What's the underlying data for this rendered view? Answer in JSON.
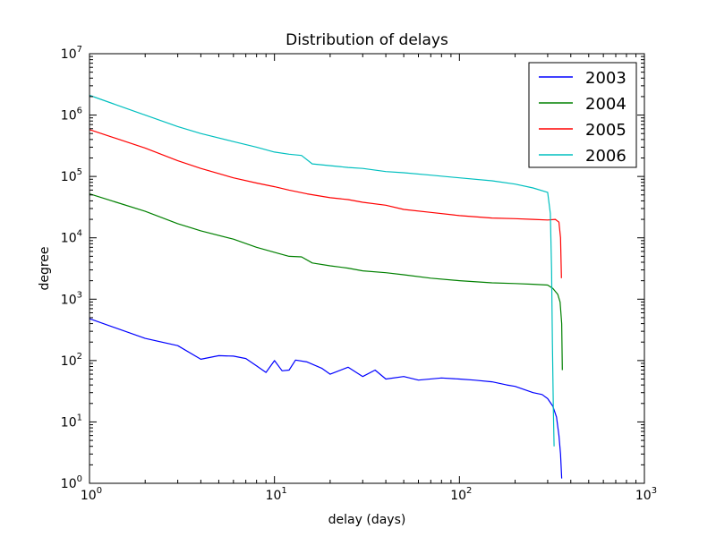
{
  "chart_data": {
    "type": "line",
    "title": "Distribution of delays",
    "xlabel": "delay (days)",
    "ylabel": "degree",
    "x_scale": "log",
    "y_scale": "log",
    "xlim": [
      1,
      1000
    ],
    "ylim": [
      1,
      10000000
    ],
    "grid": false,
    "legend_position": "top-right",
    "x_ticks": [
      {
        "value": 1,
        "base": "10",
        "exp": "0"
      },
      {
        "value": 10,
        "base": "10",
        "exp": "1"
      },
      {
        "value": 100,
        "base": "10",
        "exp": "2"
      },
      {
        "value": 1000,
        "base": "10",
        "exp": "3"
      }
    ],
    "y_ticks": [
      {
        "value": 1,
        "base": "10",
        "exp": "0"
      },
      {
        "value": 10,
        "base": "10",
        "exp": "1"
      },
      {
        "value": 100,
        "base": "10",
        "exp": "2"
      },
      {
        "value": 1000,
        "base": "10",
        "exp": "3"
      },
      {
        "value": 10000,
        "base": "10",
        "exp": "4"
      },
      {
        "value": 100000,
        "base": "10",
        "exp": "5"
      },
      {
        "value": 1000000,
        "base": "10",
        "exp": "6"
      },
      {
        "value": 10000000,
        "base": "10",
        "exp": "7"
      }
    ],
    "series": [
      {
        "name": "2003",
        "color": "#0000ff",
        "points": [
          [
            1,
            480
          ],
          [
            2,
            230
          ],
          [
            3,
            175
          ],
          [
            4,
            105
          ],
          [
            5,
            120
          ],
          [
            6,
            118
          ],
          [
            7,
            108
          ],
          [
            8,
            82
          ],
          [
            9,
            64
          ],
          [
            10,
            100
          ],
          [
            11,
            68
          ],
          [
            12,
            70
          ],
          [
            13,
            102
          ],
          [
            15,
            95
          ],
          [
            18,
            75
          ],
          [
            20,
            60
          ],
          [
            25,
            78
          ],
          [
            30,
            55
          ],
          [
            35,
            70
          ],
          [
            40,
            50
          ],
          [
            50,
            55
          ],
          [
            60,
            48
          ],
          [
            80,
            52
          ],
          [
            100,
            50
          ],
          [
            120,
            48
          ],
          [
            150,
            45
          ],
          [
            180,
            40
          ],
          [
            200,
            38
          ],
          [
            250,
            30
          ],
          [
            280,
            28
          ],
          [
            300,
            24
          ],
          [
            320,
            18
          ],
          [
            335,
            12
          ],
          [
            345,
            6
          ],
          [
            352,
            3
          ],
          [
            357,
            1.2
          ]
        ]
      },
      {
        "name": "2004",
        "color": "#008000",
        "points": [
          [
            1,
            52000
          ],
          [
            2,
            27000
          ],
          [
            3,
            17000
          ],
          [
            4,
            13000
          ],
          [
            6,
            9500
          ],
          [
            8,
            7000
          ],
          [
            10,
            5800
          ],
          [
            12,
            5000
          ],
          [
            14,
            4900
          ],
          [
            16,
            3900
          ],
          [
            20,
            3500
          ],
          [
            25,
            3200
          ],
          [
            30,
            2900
          ],
          [
            40,
            2700
          ],
          [
            50,
            2500
          ],
          [
            70,
            2200
          ],
          [
            100,
            2000
          ],
          [
            150,
            1850
          ],
          [
            200,
            1800
          ],
          [
            250,
            1750
          ],
          [
            300,
            1700
          ],
          [
            320,
            1500
          ],
          [
            340,
            1200
          ],
          [
            350,
            900
          ],
          [
            357,
            400
          ],
          [
            360,
            70
          ]
        ]
      },
      {
        "name": "2005",
        "color": "#ff0000",
        "points": [
          [
            1,
            580000
          ],
          [
            2,
            290000
          ],
          [
            3,
            180000
          ],
          [
            4,
            135000
          ],
          [
            6,
            95000
          ],
          [
            8,
            78000
          ],
          [
            10,
            68000
          ],
          [
            12,
            60000
          ],
          [
            15,
            52000
          ],
          [
            20,
            45000
          ],
          [
            25,
            42000
          ],
          [
            30,
            38000
          ],
          [
            40,
            34000
          ],
          [
            50,
            29000
          ],
          [
            70,
            26000
          ],
          [
            100,
            23000
          ],
          [
            150,
            21000
          ],
          [
            200,
            20500
          ],
          [
            250,
            20000
          ],
          [
            300,
            19500
          ],
          [
            330,
            20000
          ],
          [
            345,
            18000
          ],
          [
            352,
            10000
          ],
          [
            356,
            2200
          ]
        ]
      },
      {
        "name": "2006",
        "color": "#00bfbf",
        "points": [
          [
            1,
            2100000
          ],
          [
            2,
            1000000
          ],
          [
            3,
            650000
          ],
          [
            4,
            500000
          ],
          [
            6,
            370000
          ],
          [
            8,
            300000
          ],
          [
            10,
            250000
          ],
          [
            12,
            230000
          ],
          [
            14,
            220000
          ],
          [
            16,
            160000
          ],
          [
            20,
            150000
          ],
          [
            25,
            140000
          ],
          [
            30,
            135000
          ],
          [
            40,
            120000
          ],
          [
            50,
            115000
          ],
          [
            70,
            105000
          ],
          [
            100,
            95000
          ],
          [
            150,
            85000
          ],
          [
            200,
            75000
          ],
          [
            250,
            65000
          ],
          [
            300,
            55000
          ],
          [
            310,
            25000
          ],
          [
            315,
            3000
          ],
          [
            318,
            200
          ],
          [
            322,
            15
          ],
          [
            325,
            4
          ]
        ]
      }
    ]
  }
}
